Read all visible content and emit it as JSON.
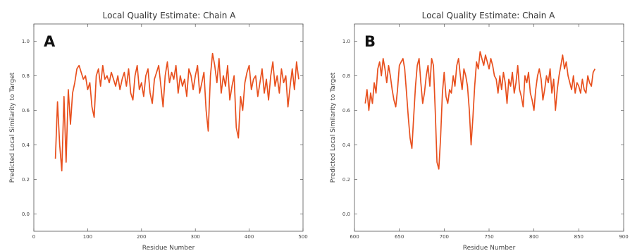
{
  "chart_data": [
    {
      "type": "line",
      "panel_label": "A",
      "title": "Local Quality Estimate: Chain A",
      "xlabel": "Residue Number",
      "ylabel": "Predicted Local Similarity to Target",
      "xlim": [
        0,
        500
      ],
      "ylim": [
        -0.1,
        1.1
      ],
      "xticks": [
        0,
        100,
        200,
        300,
        400,
        500
      ],
      "yticks": [
        0.0,
        0.2,
        0.4,
        0.6,
        0.8,
        1.0
      ],
      "xtick_labels": [
        "0",
        "100",
        "200",
        "300",
        "400",
        "500"
      ],
      "ytick_labels": [
        "0.0",
        "0.2",
        "0.4",
        "0.6",
        "0.8",
        "1.0"
      ],
      "line_color": "#e8501e",
      "grid": false,
      "series": [
        {
          "x": [
            40,
            44,
            48,
            52,
            56,
            60,
            64,
            68,
            72,
            76,
            80,
            84,
            88,
            92,
            96,
            100,
            104,
            108,
            112,
            116,
            120,
            124,
            128,
            132,
            136,
            140,
            144,
            148,
            152,
            156,
            160,
            164,
            168,
            172,
            176,
            180,
            184,
            188,
            192,
            196,
            200,
            204,
            208,
            212,
            216,
            220,
            224,
            228,
            232,
            236,
            240,
            244,
            248,
            252,
            256,
            260,
            264,
            268,
            272,
            276,
            280,
            284,
            288,
            292,
            296,
            300,
            304,
            308,
            312,
            316,
            320,
            324,
            328,
            332,
            336,
            340,
            344,
            348,
            352,
            356,
            360,
            364,
            368,
            372,
            376,
            380,
            384,
            388,
            392,
            396,
            400,
            404,
            408,
            412,
            416,
            420,
            424,
            428,
            432,
            436,
            440,
            444,
            448,
            452,
            456,
            460,
            464,
            468,
            472,
            476,
            480,
            484,
            488,
            492
          ],
          "y": [
            0.32,
            0.65,
            0.4,
            0.25,
            0.68,
            0.3,
            0.72,
            0.52,
            0.7,
            0.76,
            0.84,
            0.86,
            0.82,
            0.78,
            0.8,
            0.72,
            0.76,
            0.62,
            0.56,
            0.8,
            0.84,
            0.74,
            0.86,
            0.78,
            0.8,
            0.76,
            0.82,
            0.78,
            0.74,
            0.8,
            0.72,
            0.78,
            0.82,
            0.74,
            0.84,
            0.7,
            0.66,
            0.8,
            0.86,
            0.72,
            0.76,
            0.68,
            0.8,
            0.84,
            0.7,
            0.64,
            0.78,
            0.82,
            0.86,
            0.74,
            0.62,
            0.8,
            0.88,
            0.76,
            0.82,
            0.78,
            0.86,
            0.7,
            0.8,
            0.74,
            0.78,
            0.68,
            0.84,
            0.8,
            0.72,
            0.8,
            0.86,
            0.7,
            0.76,
            0.82,
            0.6,
            0.48,
            0.8,
            0.93,
            0.86,
            0.76,
            0.9,
            0.7,
            0.8,
            0.74,
            0.86,
            0.66,
            0.74,
            0.8,
            0.5,
            0.44,
            0.68,
            0.6,
            0.76,
            0.82,
            0.86,
            0.72,
            0.78,
            0.8,
            0.68,
            0.76,
            0.84,
            0.7,
            0.78,
            0.66,
            0.8,
            0.88,
            0.74,
            0.8,
            0.7,
            0.84,
            0.76,
            0.8,
            0.62,
            0.74,
            0.84,
            0.72,
            0.88,
            0.78
          ]
        }
      ]
    },
    {
      "type": "line",
      "panel_label": "B",
      "title": "Local Quality Estimate: Chain A",
      "xlabel": "Residue Number",
      "ylabel": "Predicted Local Similarity to Target",
      "xlim": [
        600,
        900
      ],
      "ylim": [
        -0.1,
        1.1
      ],
      "xticks": [
        600,
        650,
        700,
        750,
        800,
        850,
        900
      ],
      "yticks": [
        0.0,
        0.2,
        0.4,
        0.6,
        0.8,
        1.0
      ],
      "xtick_labels": [
        "600",
        "650",
        "700",
        "750",
        "800",
        "850",
        "900"
      ],
      "ytick_labels": [
        "0.0",
        "0.2",
        "0.4",
        "0.6",
        "0.8",
        "1.0"
      ],
      "line_color": "#e8501e",
      "grid": false,
      "series": [
        {
          "x": [
            612,
            614,
            616,
            618,
            620,
            622,
            624,
            626,
            628,
            630,
            632,
            634,
            636,
            638,
            640,
            642,
            644,
            646,
            648,
            650,
            652,
            654,
            656,
            658,
            660,
            662,
            664,
            666,
            668,
            670,
            672,
            674,
            676,
            678,
            680,
            682,
            684,
            686,
            688,
            690,
            692,
            694,
            696,
            698,
            700,
            702,
            704,
            706,
            708,
            710,
            712,
            714,
            716,
            718,
            720,
            722,
            724,
            726,
            728,
            730,
            732,
            734,
            736,
            738,
            740,
            742,
            744,
            746,
            748,
            750,
            752,
            754,
            756,
            758,
            760,
            762,
            764,
            766,
            768,
            770,
            772,
            774,
            776,
            778,
            780,
            782,
            784,
            786,
            788,
            790,
            792,
            794,
            796,
            798,
            800,
            802,
            804,
            806,
            808,
            810,
            812,
            814,
            816,
            818,
            820,
            822,
            824,
            826,
            828,
            830,
            832,
            834,
            836,
            838,
            840,
            842,
            844,
            846,
            848,
            850,
            852,
            854,
            856,
            858,
            860,
            862,
            864,
            866,
            868
          ],
          "y": [
            0.64,
            0.72,
            0.6,
            0.7,
            0.64,
            0.76,
            0.7,
            0.84,
            0.88,
            0.8,
            0.9,
            0.84,
            0.76,
            0.86,
            0.8,
            0.72,
            0.66,
            0.62,
            0.72,
            0.86,
            0.88,
            0.9,
            0.84,
            0.7,
            0.56,
            0.44,
            0.38,
            0.56,
            0.74,
            0.86,
            0.9,
            0.76,
            0.64,
            0.7,
            0.8,
            0.86,
            0.74,
            0.9,
            0.86,
            0.6,
            0.3,
            0.26,
            0.44,
            0.7,
            0.82,
            0.68,
            0.64,
            0.72,
            0.7,
            0.8,
            0.74,
            0.86,
            0.9,
            0.8,
            0.72,
            0.84,
            0.8,
            0.74,
            0.6,
            0.4,
            0.56,
            0.74,
            0.88,
            0.84,
            0.94,
            0.9,
            0.86,
            0.92,
            0.88,
            0.84,
            0.9,
            0.86,
            0.8,
            0.78,
            0.7,
            0.8,
            0.72,
            0.82,
            0.76,
            0.64,
            0.78,
            0.74,
            0.82,
            0.7,
            0.76,
            0.86,
            0.72,
            0.68,
            0.62,
            0.8,
            0.76,
            0.82,
            0.7,
            0.66,
            0.6,
            0.72,
            0.8,
            0.84,
            0.78,
            0.66,
            0.72,
            0.8,
            0.76,
            0.84,
            0.7,
            0.78,
            0.6,
            0.72,
            0.8,
            0.86,
            0.92,
            0.84,
            0.88,
            0.8,
            0.76,
            0.72,
            0.8,
            0.7,
            0.76,
            0.74,
            0.7,
            0.78,
            0.72,
            0.7,
            0.8,
            0.76,
            0.74,
            0.82,
            0.84
          ]
        }
      ]
    }
  ]
}
